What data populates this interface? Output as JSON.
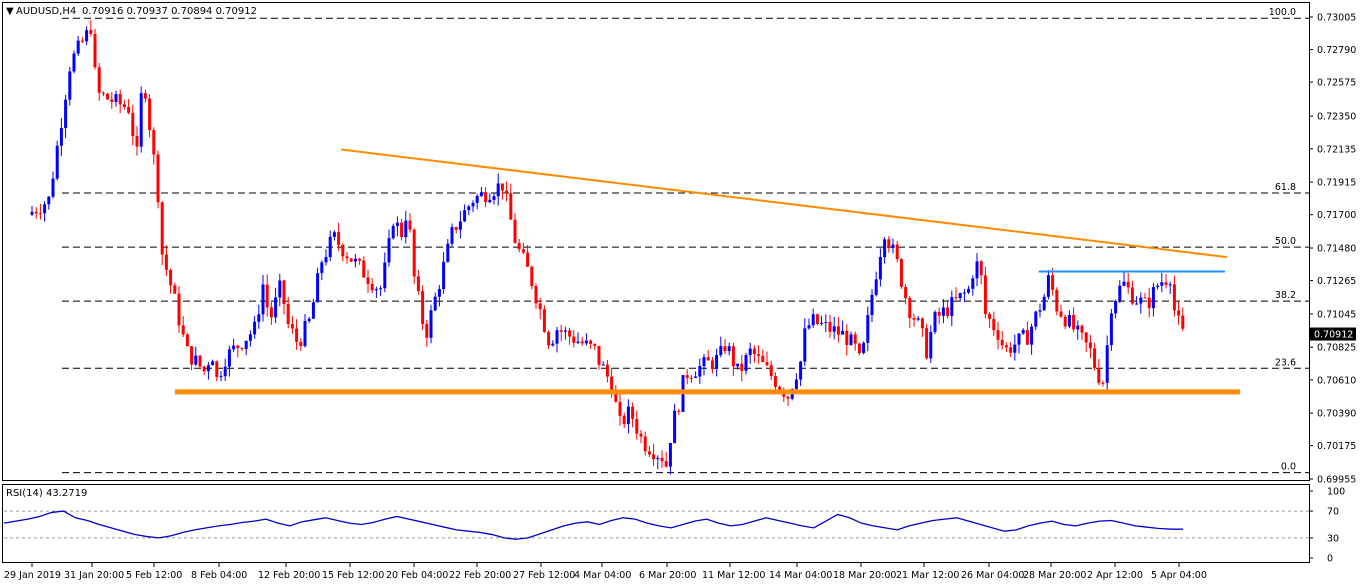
{
  "chart_data": [
    {
      "type": "candlestick",
      "title": "AUDUSD,H4",
      "ohlc_text": "0.70916 0.70937 0.70894 0.70912",
      "last_price": "0.70912",
      "ylim": [
        0.69955,
        0.73005
      ],
      "y_ticks": [
        "0.73005",
        "0.72790",
        "0.72575",
        "0.72350",
        "0.72135",
        "0.71915",
        "0.71700",
        "0.71480",
        "0.71265",
        "0.71045",
        "0.70825",
        "0.70610",
        "0.70390",
        "0.70175",
        "0.69955"
      ],
      "x_ticks": [
        "29 Jan 2019",
        "31 Jan 20:00",
        "5 Feb 12:00",
        "8 Feb 04:00",
        "12 Feb 20:00",
        "15 Feb 12:00",
        "20 Feb 04:00",
        "22 Feb 20:00",
        "27 Feb 12:00",
        "4 Mar 04:00",
        "6 Mar 20:00",
        "11 Mar 12:00",
        "14 Mar 04:00",
        "18 Mar 20:00",
        "21 Mar 12:00",
        "26 Mar 04:00",
        "28 Mar 20:00",
        "2 Apr 12:00",
        "5 Apr 04:00"
      ],
      "fibonacci_levels": [
        {
          "label": "100.0",
          "price": 0.72997
        },
        {
          "label": "61.8",
          "price": 0.71843
        },
        {
          "label": "50.0",
          "price": 0.71486
        },
        {
          "label": "38.2",
          "price": 0.71129
        },
        {
          "label": "23.6",
          "price": 0.70686
        },
        {
          "label": "0.0",
          "price": 0.69997
        }
      ],
      "support_line": {
        "price": 0.7053,
        "from_date": "8 Feb",
        "to_date": "5 Apr",
        "color": "#ff8c00"
      },
      "resistance_line": {
        "price": 0.71325,
        "from_date": "28 Mar",
        "to_date": "5 Apr",
        "color": "#1e90ff"
      },
      "trend_line": {
        "start_date": "15 Feb",
        "start_price": 0.7213,
        "end_date": "5 Apr",
        "end_price": 0.7142,
        "color": "#ff8c00"
      },
      "price_anchors": [
        {
          "date": "29 Jan",
          "price": 0.717
        },
        {
          "date": "30 Jan",
          "price": 0.718
        },
        {
          "date": "31 Jan",
          "price": 0.727
        },
        {
          "date": "31 Jan 20:00",
          "price": 0.729
        },
        {
          "date": "1 Feb",
          "price": 0.73
        },
        {
          "date": "1 Feb 12:00",
          "price": 0.725
        },
        {
          "date": "4 Feb",
          "price": 0.724
        },
        {
          "date": "4 Feb 12:00",
          "price": 0.7205
        },
        {
          "date": "5 Feb",
          "price": 0.7265
        },
        {
          "date": "5 Feb 08:00",
          "price": 0.724
        },
        {
          "date": "5 Feb 20:00",
          "price": 0.7185
        },
        {
          "date": "6 Feb",
          "price": 0.7145
        },
        {
          "date": "6 Feb 12:00",
          "price": 0.7115
        },
        {
          "date": "7 Feb",
          "price": 0.708
        },
        {
          "date": "7 Feb 20:00",
          "price": 0.7065
        },
        {
          "date": "8 Feb",
          "price": 0.7085
        },
        {
          "date": "8 Feb 08:00",
          "price": 0.706
        },
        {
          "date": "8 Feb 20:00",
          "price": 0.7075
        },
        {
          "date": "11 Feb",
          "price": 0.7095
        },
        {
          "date": "11 Feb 12:00",
          "price": 0.7125
        },
        {
          "date": "12 Feb",
          "price": 0.71
        },
        {
          "date": "12 Feb 20:00",
          "price": 0.7125
        },
        {
          "date": "13 Feb",
          "price": 0.71
        },
        {
          "date": "13 Feb 12:00",
          "price": 0.7085
        },
        {
          "date": "14 Feb",
          "price": 0.71
        },
        {
          "date": "14 Feb 12:00",
          "price": 0.714
        },
        {
          "date": "15 Feb",
          "price": 0.7155
        },
        {
          "date": "15 Feb 12:00",
          "price": 0.7145
        },
        {
          "date": "18 Feb",
          "price": 0.712
        },
        {
          "date": "18 Feb 12:00",
          "price": 0.714
        },
        {
          "date": "19 Feb",
          "price": 0.717
        },
        {
          "date": "19 Feb 12:00",
          "price": 0.7155
        },
        {
          "date": "20 Feb",
          "price": 0.7175
        },
        {
          "date": "20 Feb 08:00",
          "price": 0.713
        },
        {
          "date": "20 Feb 20:00",
          "price": 0.709
        },
        {
          "date": "21 Feb",
          "price": 0.71
        },
        {
          "date": "21 Feb 12:00",
          "price": 0.713
        },
        {
          "date": "22 Feb",
          "price": 0.716
        },
        {
          "date": "22 Feb 20:00",
          "price": 0.718
        },
        {
          "date": "25 Feb",
          "price": 0.719
        },
        {
          "date": "25 Feb 12:00",
          "price": 0.717
        },
        {
          "date": "26 Feb",
          "price": 0.715
        },
        {
          "date": "26 Feb 12:00",
          "price": 0.714
        },
        {
          "date": "27 Feb",
          "price": 0.713
        },
        {
          "date": "27 Feb 12:00",
          "price": 0.7115
        },
        {
          "date": "28 Feb",
          "price": 0.71
        },
        {
          "date": "28 Feb 12:00",
          "price": 0.7085
        },
        {
          "date": "1 Mar",
          "price": 0.7095
        },
        {
          "date": "4 Mar",
          "price": 0.708
        },
        {
          "date": "4 Mar 04:00",
          "price": 0.7075
        },
        {
          "date": "4 Mar 20:00",
          "price": 0.7055
        },
        {
          "date": "5 Mar",
          "price": 0.703
        },
        {
          "date": "5 Mar 12:00",
          "price": 0.704
        },
        {
          "date": "6 Mar",
          "price": 0.702
        },
        {
          "date": "6 Mar 20:00",
          "price": 0.701
        },
        {
          "date": "7 Mar",
          "price": 0.7
        },
        {
          "date": "7 Mar 12:00",
          "price": 0.703
        },
        {
          "date": "8 Mar",
          "price": 0.7045
        },
        {
          "date": "8 Mar 12:00",
          "price": 0.7065
        },
        {
          "date": "11 Mar",
          "price": 0.7075
        },
        {
          "date": "11 Mar 12:00",
          "price": 0.7085
        },
        {
          "date": "12 Mar",
          "price": 0.7065
        },
        {
          "date": "12 Mar 12:00",
          "price": 0.708
        },
        {
          "date": "13 Mar",
          "price": 0.707
        },
        {
          "date": "14 Mar",
          "price": 0.705
        },
        {
          "date": "14 Mar 04:00",
          "price": 0.706
        },
        {
          "date": "14 Mar 20:00",
          "price": 0.7075
        },
        {
          "date": "15 Mar",
          "price": 0.709
        },
        {
          "date": "15 Mar 12:00",
          "price": 0.71
        },
        {
          "date": "18 Mar",
          "price": 0.709
        },
        {
          "date": "18 Mar 20:00",
          "price": 0.708
        },
        {
          "date": "19 Mar",
          "price": 0.707
        },
        {
          "date": "19 Mar 12:00",
          "price": 0.712
        },
        {
          "date": "20 Mar",
          "price": 0.716
        },
        {
          "date": "20 Mar 12:00",
          "price": 0.714
        },
        {
          "date": "21 Mar",
          "price": 0.711
        },
        {
          "date": "21 Mar 12:00",
          "price": 0.7095
        },
        {
          "date": "22 Mar",
          "price": 0.708
        },
        {
          "date": "22 Mar 12:00",
          "price": 0.71
        },
        {
          "date": "25 Mar",
          "price": 0.712
        },
        {
          "date": "25 Mar 12:00",
          "price": 0.714
        },
        {
          "date": "26 Mar",
          "price": 0.7125
        },
        {
          "date": "26 Mar 04:00",
          "price": 0.7105
        },
        {
          "date": "26 Mar 20:00",
          "price": 0.709
        },
        {
          "date": "27 Mar",
          "price": 0.708
        },
        {
          "date": "27 Mar 12:00",
          "price": 0.7085
        },
        {
          "date": "28 Mar",
          "price": 0.709
        },
        {
          "date": "28 Mar 20:00",
          "price": 0.712
        },
        {
          "date": "29 Mar",
          "price": 0.713
        },
        {
          "date": "29 Mar 12:00",
          "price": 0.711
        },
        {
          "date": "1 Apr",
          "price": 0.708
        },
        {
          "date": "1 Apr 12:00",
          "price": 0.7065
        },
        {
          "date": "2 Apr",
          "price": 0.706
        },
        {
          "date": "2 Apr 12:00",
          "price": 0.711
        },
        {
          "date": "3 Apr",
          "price": 0.7125
        },
        {
          "date": "3 Apr 12:00",
          "price": 0.7115
        },
        {
          "date": "4 Apr",
          "price": 0.711
        },
        {
          "date": "4 Apr 12:00",
          "price": 0.7125
        },
        {
          "date": "5 Apr",
          "price": 0.713
        },
        {
          "date": "5 Apr 04:00",
          "price": 0.7105
        },
        {
          "date": "5 Apr 12:00",
          "price": 0.7091
        }
      ]
    },
    {
      "type": "line",
      "title": "RSI(14) 43.2719",
      "ylim": [
        0,
        100
      ],
      "y_ticks": [
        "100",
        "70",
        "30",
        "0"
      ],
      "levels": [
        70,
        30
      ],
      "series": [
        {
          "values": [
            52,
            55,
            58,
            62,
            68,
            70,
            60,
            56,
            50,
            45,
            40,
            35,
            32,
            30,
            33,
            38,
            42,
            45,
            48,
            50,
            53,
            55,
            58,
            52,
            48,
            54,
            57,
            60,
            56,
            52,
            50,
            53,
            58,
            62,
            58,
            54,
            50,
            46,
            42,
            40,
            38,
            35,
            30,
            28,
            30,
            36,
            42,
            48,
            52,
            54,
            50,
            56,
            60,
            58,
            52,
            48,
            45,
            50,
            55,
            58,
            52,
            48,
            50,
            55,
            60,
            56,
            52,
            48,
            45,
            55,
            65,
            60,
            52,
            48,
            45,
            42,
            48,
            52,
            56,
            58,
            60,
            55,
            50,
            45,
            40,
            42,
            48,
            52,
            55,
            50,
            48,
            52,
            55,
            56,
            52,
            48,
            46,
            44,
            43,
            43
          ]
        }
      ]
    }
  ]
}
